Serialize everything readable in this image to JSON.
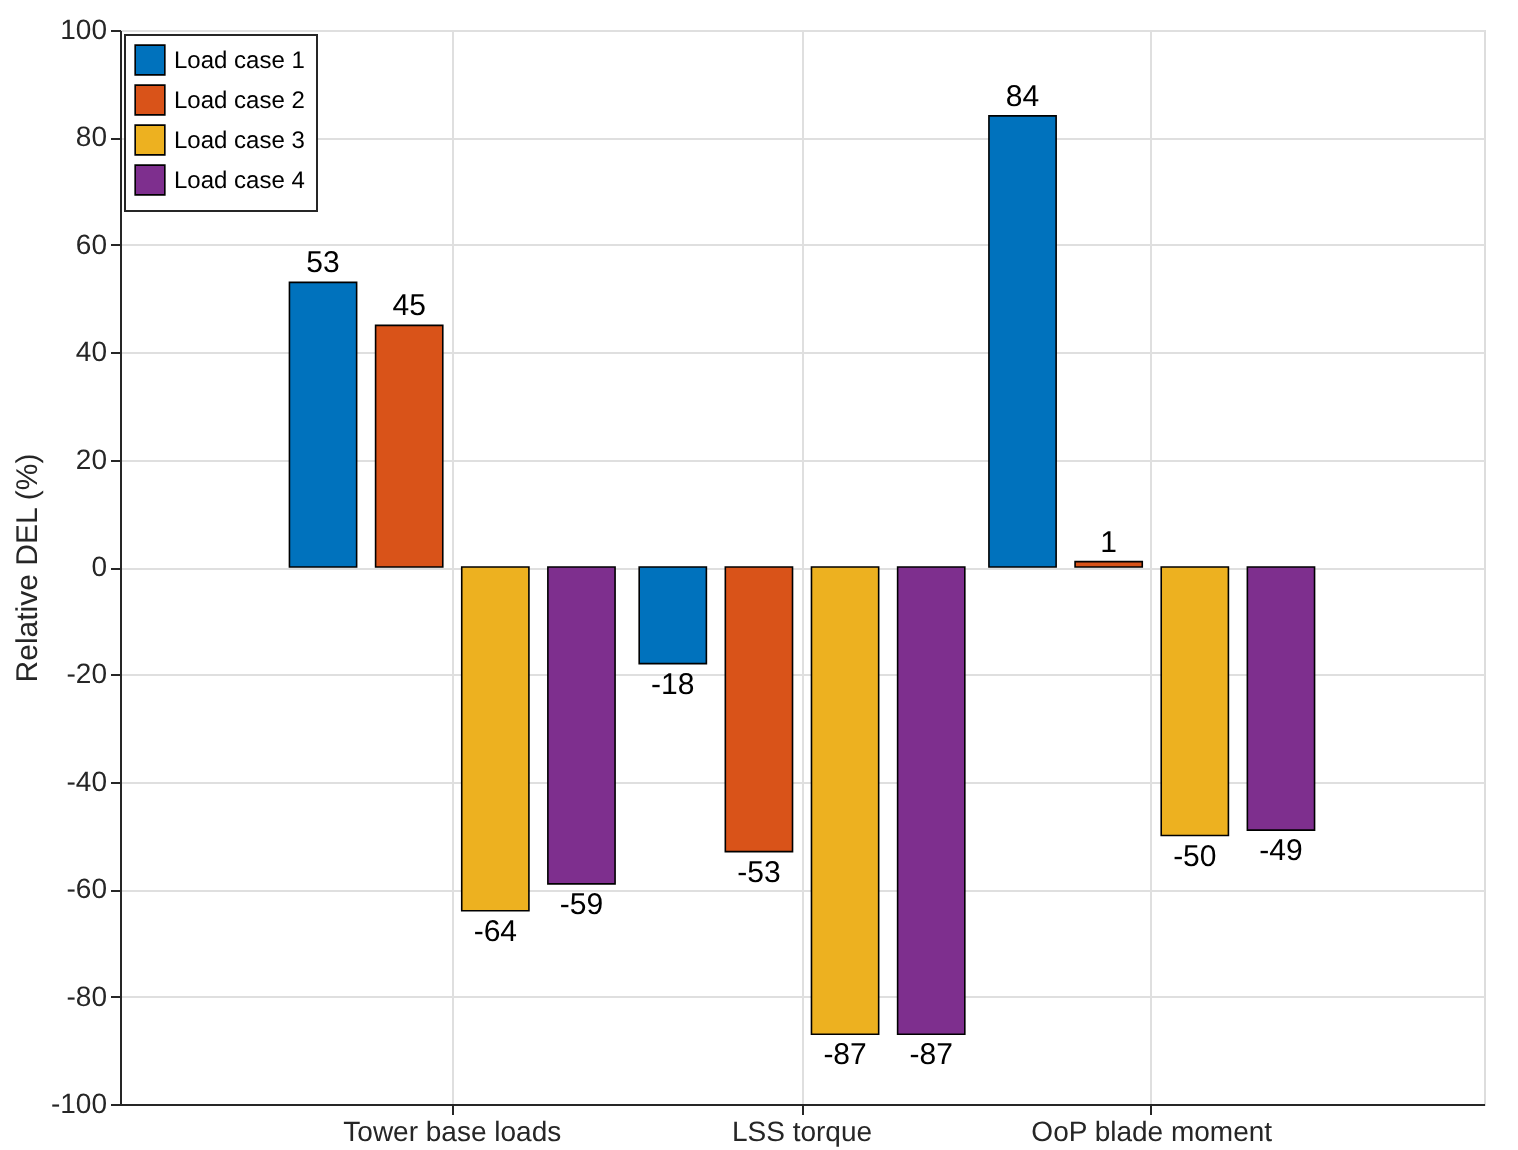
{
  "chart_data": {
    "type": "bar",
    "ylabel": "Relative DEL (%)",
    "categories": [
      "Tower base loads",
      "LSS torque",
      "OoP blade moment"
    ],
    "series": [
      {
        "name": "Load case 1",
        "color": "#0072bd",
        "values": [
          53,
          -18,
          84
        ]
      },
      {
        "name": "Load case 2",
        "color": "#d95319",
        "values": [
          45,
          -53,
          1
        ]
      },
      {
        "name": "Load case 3",
        "color": "#edb120",
        "values": [
          -64,
          -87,
          -50
        ]
      },
      {
        "name": "Load case 4",
        "color": "#7e2f8e",
        "values": [
          -59,
          -87,
          -49
        ]
      }
    ],
    "ylim": [
      -100,
      100
    ],
    "yticks": [
      -100,
      -80,
      -60,
      -40,
      -20,
      0,
      20,
      40,
      60,
      80,
      100
    ],
    "grid": true,
    "legend": "top left",
    "data_labels": true
  }
}
